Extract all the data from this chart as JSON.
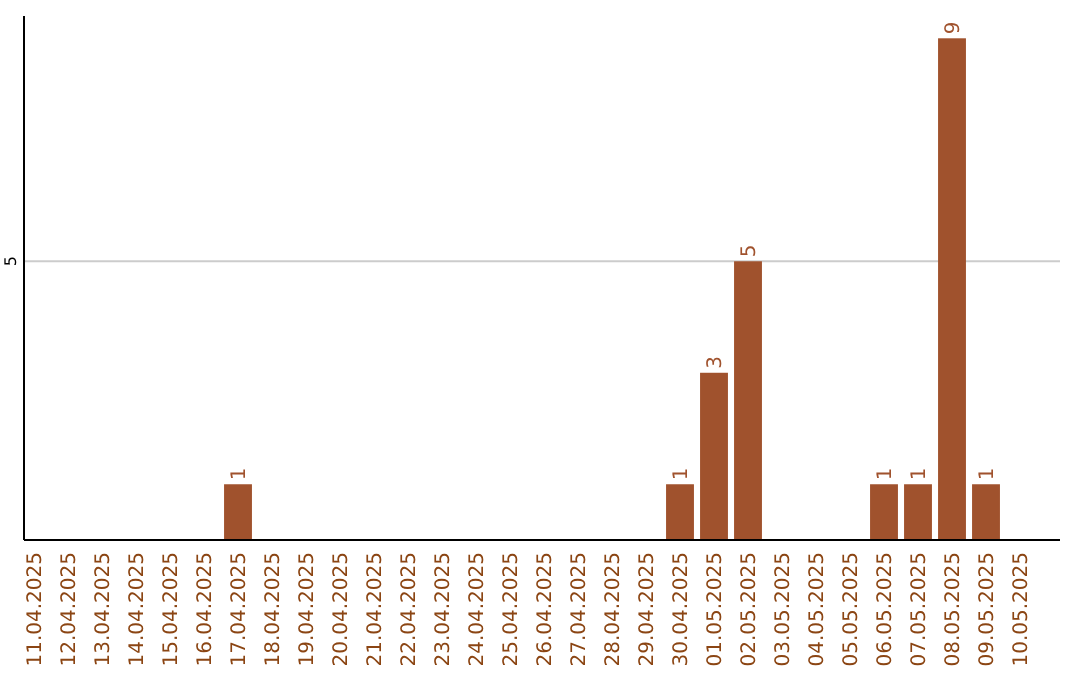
{
  "chart_data": {
    "type": "bar",
    "categories": [
      "11.04.2025",
      "12.04.2025",
      "13.04.2025",
      "14.04.2025",
      "15.04.2025",
      "16.04.2025",
      "17.04.2025",
      "18.04.2025",
      "19.04.2025",
      "20.04.2025",
      "21.04.2025",
      "22.04.2025",
      "23.04.2025",
      "24.04.2025",
      "25.04.2025",
      "26.04.2025",
      "27.04.2025",
      "28.04.2025",
      "29.04.2025",
      "30.04.2025",
      "01.05.2025",
      "02.05.2025",
      "03.05.2025",
      "04.05.2025",
      "05.05.2025",
      "06.05.2025",
      "07.05.2025",
      "08.05.2025",
      "09.05.2025",
      "10.05.2025"
    ],
    "values": [
      0,
      0,
      0,
      0,
      0,
      0,
      1,
      0,
      0,
      0,
      0,
      0,
      0,
      0,
      0,
      0,
      0,
      0,
      0,
      1,
      3,
      5,
      0,
      0,
      0,
      1,
      1,
      9,
      1,
      0
    ],
    "value_labels": [
      null,
      null,
      null,
      null,
      null,
      null,
      "1",
      null,
      null,
      null,
      null,
      null,
      null,
      null,
      null,
      null,
      null,
      null,
      null,
      "1",
      "3",
      "5",
      null,
      null,
      null,
      "1",
      "1",
      "9",
      "1",
      null
    ],
    "color": "#a0522d",
    "ylim": [
      0,
      9.4
    ],
    "yticks": [
      5
    ],
    "grid": "y"
  }
}
